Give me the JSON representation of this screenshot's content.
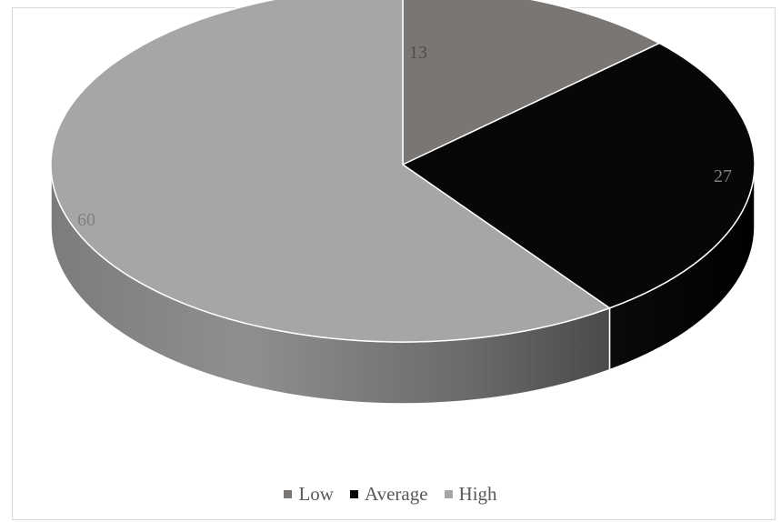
{
  "chart_data": {
    "type": "pie",
    "categories": [
      "Low",
      "Average",
      "High"
    ],
    "values": [
      13,
      27,
      60
    ],
    "data_labels": [
      "13",
      "27",
      "60"
    ],
    "colors": {
      "Low": "#7a7674",
      "Average": "#070707",
      "High": "#a6a6a6"
    },
    "label_colors": {
      "Low": "#4d4d4d",
      "Average": "#7f7f7f",
      "High": "#7f7f7f"
    },
    "style": "3d",
    "legend_position": "bottom"
  }
}
